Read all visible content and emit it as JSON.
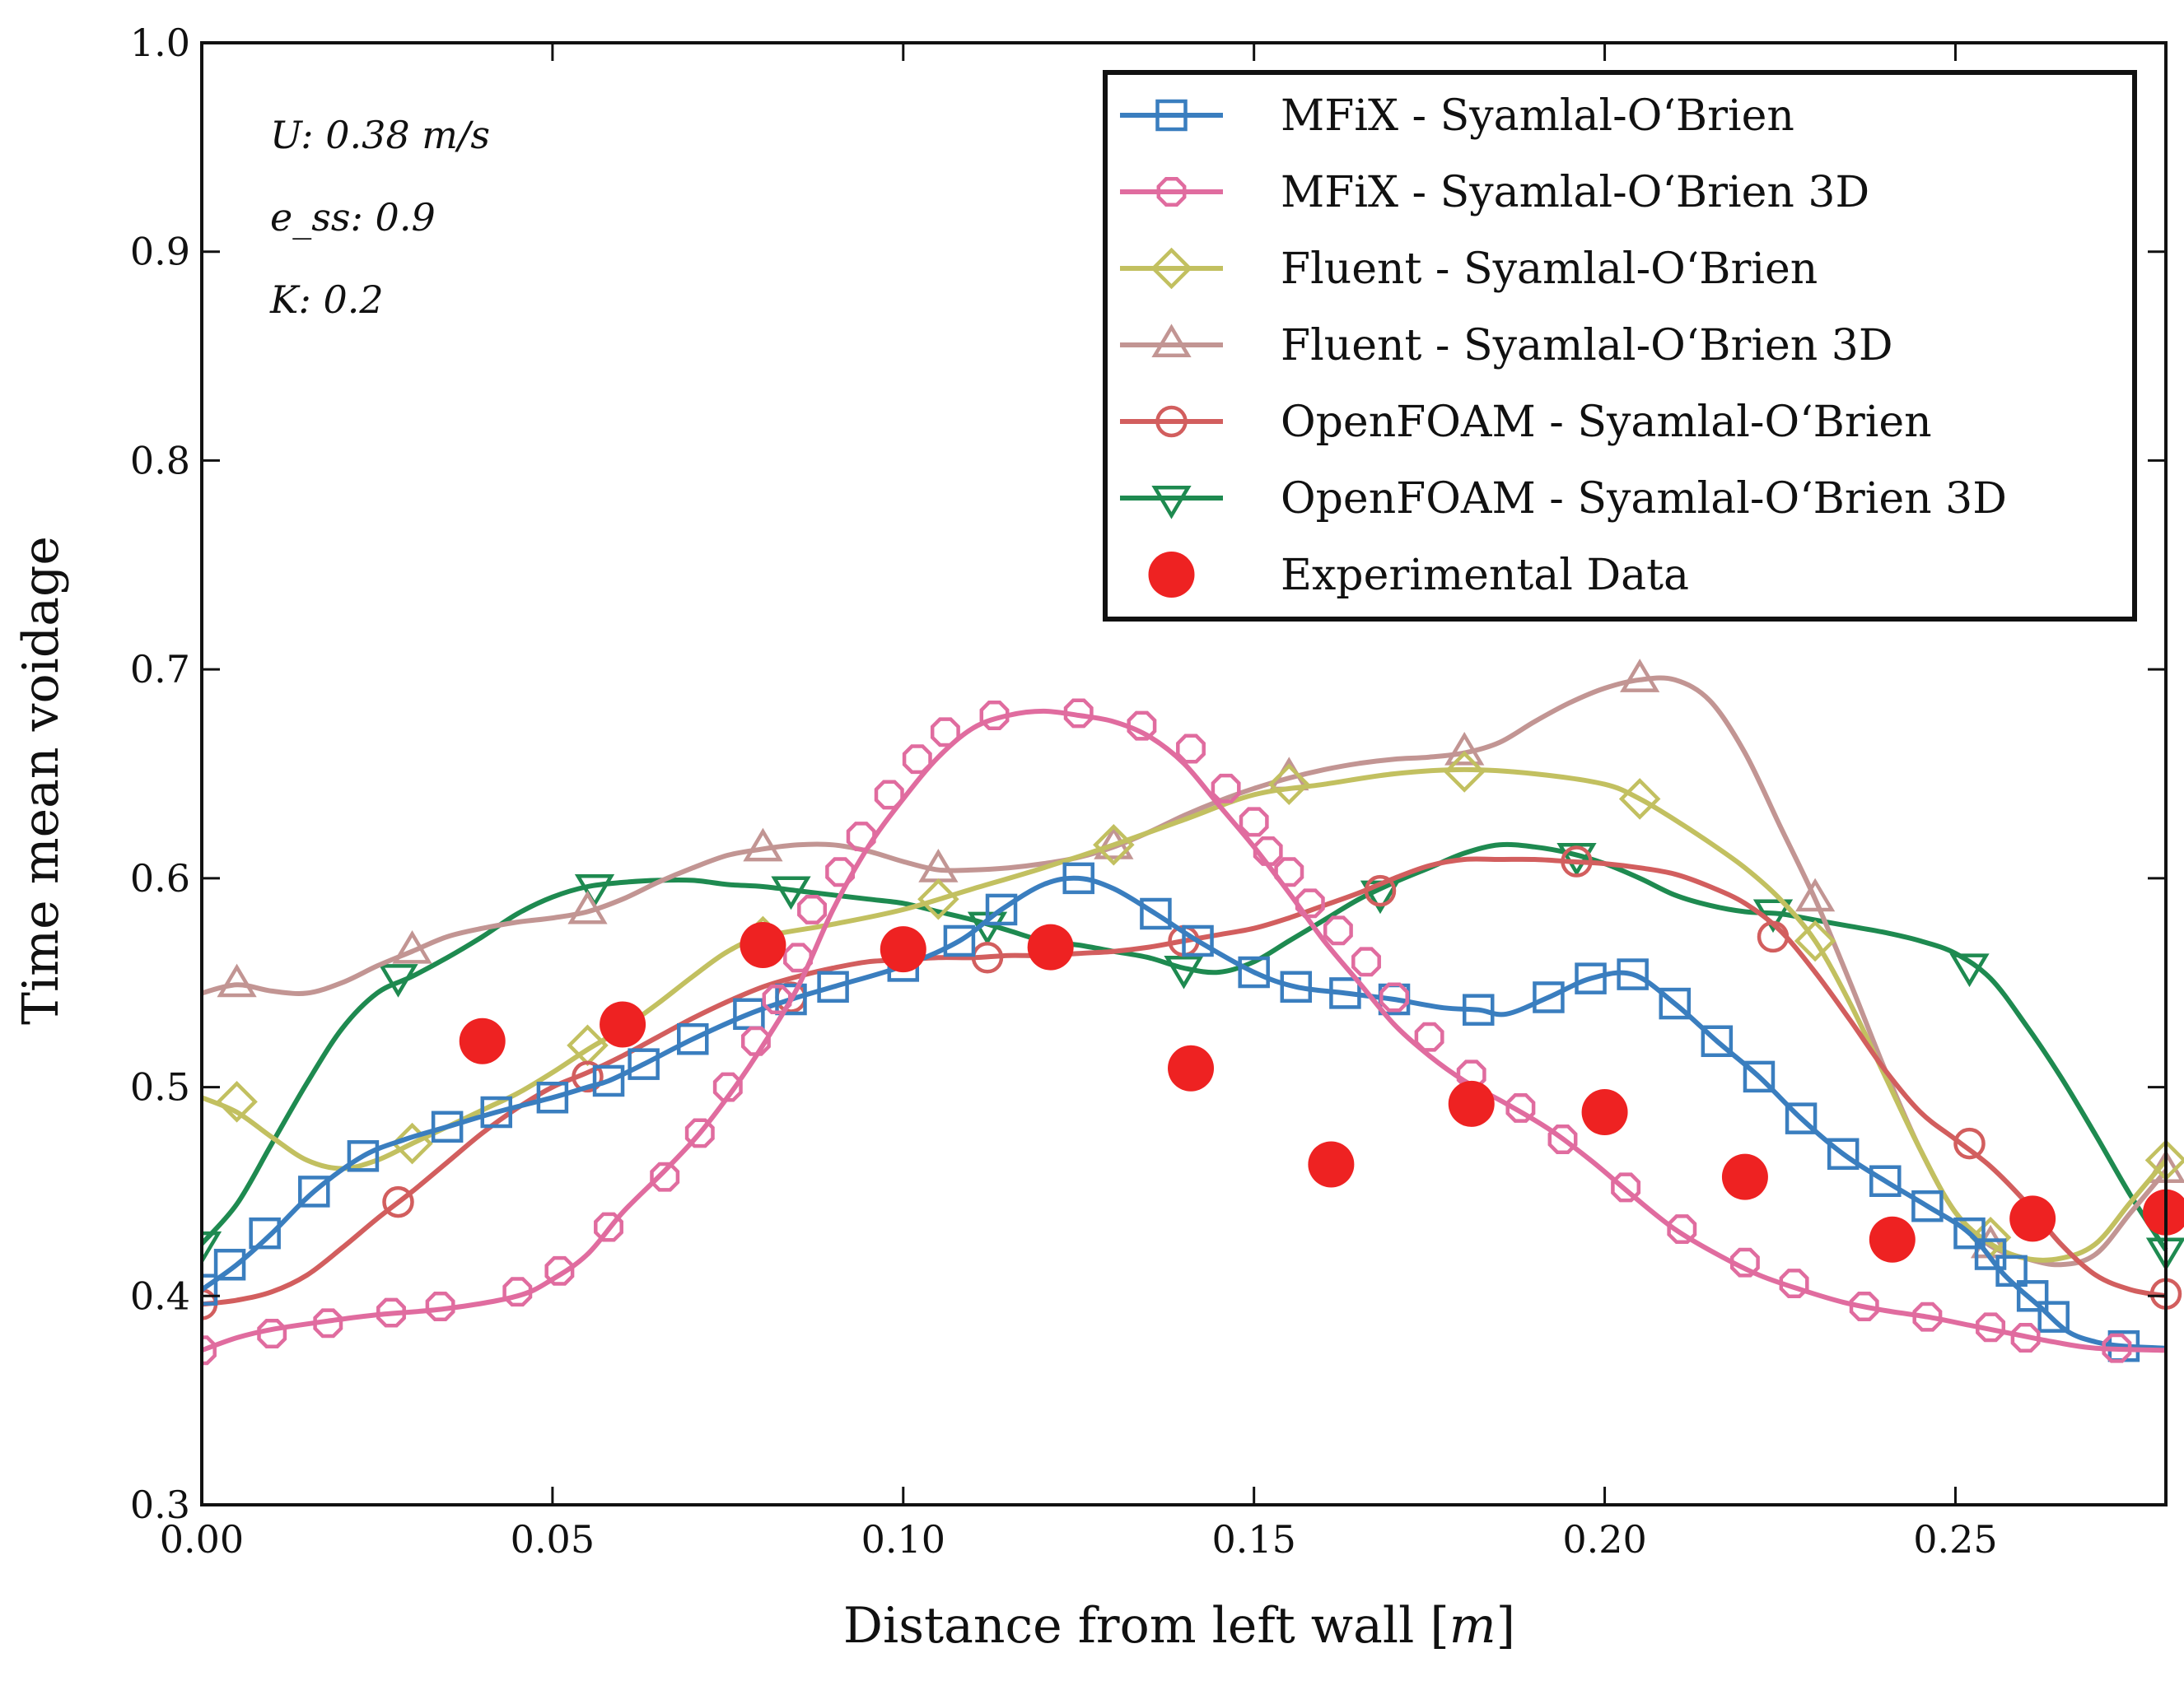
{
  "chart_data": {
    "type": "line",
    "title": "",
    "xlabel": "Distance from left wall [m]",
    "ylabel": "Time mean voidage",
    "xlim": [
      0.0,
      0.28
    ],
    "ylim": [
      0.3,
      1.0
    ],
    "xticks": [
      "0.00",
      "0.05",
      "0.10",
      "0.15",
      "0.20",
      "0.25"
    ],
    "xtick_values": [
      0.0,
      0.05,
      0.1,
      0.15,
      0.2,
      0.25
    ],
    "yticks": [
      "0.3",
      "0.4",
      "0.5",
      "0.6",
      "0.7",
      "0.8",
      "0.9",
      "1.0"
    ],
    "ytick_values": [
      0.3,
      0.4,
      0.5,
      0.6,
      0.7,
      0.8,
      0.9,
      1.0
    ],
    "grid": false,
    "legend_position": "top-right",
    "annotations": [
      "U: 0.38 m/s",
      "e_ss: 0.9",
      "K: 0.2"
    ],
    "series": [
      {
        "name": "MFiX - Syamlal-O‘Brien",
        "color": "#3a7ebf",
        "marker": "square",
        "x": [
          0.0,
          0.005,
          0.01,
          0.016,
          0.023,
          0.029,
          0.035,
          0.042,
          0.05,
          0.055,
          0.058,
          0.063,
          0.07,
          0.078,
          0.084,
          0.09,
          0.1,
          0.108,
          0.114,
          0.12,
          0.125,
          0.13,
          0.136,
          0.142,
          0.15,
          0.156,
          0.163,
          0.17,
          0.177,
          0.182,
          0.186,
          0.192,
          0.198,
          0.204,
          0.21,
          0.216,
          0.222,
          0.228,
          0.234,
          0.24,
          0.246,
          0.252,
          0.257,
          0.262,
          0.266,
          0.27,
          0.274,
          0.28
        ],
        "y": [
          0.403,
          0.415,
          0.43,
          0.45,
          0.467,
          0.475,
          0.481,
          0.488,
          0.495,
          0.5,
          0.503,
          0.511,
          0.523,
          0.535,
          0.542,
          0.548,
          0.558,
          0.57,
          0.585,
          0.597,
          0.6,
          0.595,
          0.583,
          0.57,
          0.555,
          0.548,
          0.545,
          0.542,
          0.538,
          0.537,
          0.535,
          0.543,
          0.552,
          0.554,
          0.54,
          0.522,
          0.505,
          0.485,
          0.468,
          0.455,
          0.443,
          0.43,
          0.41,
          0.395,
          0.383,
          0.378,
          0.376,
          0.375
        ],
        "marker_x": [
          0.0,
          0.004,
          0.009,
          0.016,
          0.023,
          0.035,
          0.042,
          0.05,
          0.058,
          0.063,
          0.07,
          0.078,
          0.084,
          0.09,
          0.1,
          0.108,
          0.114,
          0.125,
          0.136,
          0.142,
          0.15,
          0.156,
          0.163,
          0.17,
          0.182,
          0.192,
          0.198,
          0.204,
          0.21,
          0.216,
          0.222,
          0.228,
          0.234,
          0.24,
          0.246,
          0.252,
          0.255,
          0.258,
          0.261,
          0.264,
          0.274
        ],
        "marker_y": [
          0.403,
          0.415,
          0.43,
          0.45,
          0.467,
          0.481,
          0.488,
          0.495,
          0.503,
          0.511,
          0.523,
          0.535,
          0.542,
          0.548,
          0.558,
          0.57,
          0.585,
          0.6,
          0.583,
          0.57,
          0.555,
          0.548,
          0.545,
          0.542,
          0.537,
          0.543,
          0.552,
          0.554,
          0.54,
          0.522,
          0.505,
          0.485,
          0.468,
          0.455,
          0.443,
          0.43,
          0.42,
          0.412,
          0.4,
          0.39,
          0.376
        ]
      },
      {
        "name": "MFiX - Syamlal-O‘Brien 3D",
        "color": "#e06c9f",
        "marker": "octagon",
        "x": [
          0.0,
          0.005,
          0.01,
          0.018,
          0.025,
          0.035,
          0.045,
          0.05,
          0.055,
          0.06,
          0.066,
          0.071,
          0.076,
          0.08,
          0.085,
          0.09,
          0.095,
          0.1,
          0.105,
          0.11,
          0.115,
          0.12,
          0.125,
          0.13,
          0.135,
          0.14,
          0.145,
          0.15,
          0.155,
          0.16,
          0.165,
          0.17,
          0.175,
          0.18,
          0.186,
          0.192,
          0.198,
          0.204,
          0.21,
          0.216,
          0.222,
          0.228,
          0.234,
          0.24,
          0.246,
          0.252,
          0.258,
          0.264,
          0.27,
          0.28
        ],
        "y": [
          0.374,
          0.38,
          0.384,
          0.388,
          0.391,
          0.394,
          0.4,
          0.408,
          0.42,
          0.44,
          0.46,
          0.478,
          0.5,
          0.52,
          0.548,
          0.585,
          0.615,
          0.638,
          0.658,
          0.672,
          0.678,
          0.68,
          0.678,
          0.675,
          0.668,
          0.655,
          0.635,
          0.615,
          0.593,
          0.57,
          0.55,
          0.53,
          0.515,
          0.503,
          0.492,
          0.48,
          0.465,
          0.448,
          0.432,
          0.42,
          0.41,
          0.403,
          0.397,
          0.393,
          0.39,
          0.386,
          0.382,
          0.378,
          0.375,
          0.374
        ],
        "marker_x": [
          0.0,
          0.01,
          0.018,
          0.027,
          0.034,
          0.045,
          0.051,
          0.058,
          0.066,
          0.071,
          0.075,
          0.079,
          0.082,
          0.085,
          0.087,
          0.091,
          0.094,
          0.098,
          0.102,
          0.106,
          0.113,
          0.125,
          0.134,
          0.141,
          0.146,
          0.15,
          0.152,
          0.155,
          0.158,
          0.162,
          0.166,
          0.17,
          0.175,
          0.181,
          0.188,
          0.194,
          0.203,
          0.211,
          0.22,
          0.227,
          0.237,
          0.246,
          0.255,
          0.26,
          0.273
        ],
        "marker_y": [
          0.374,
          0.382,
          0.387,
          0.392,
          0.395,
          0.402,
          0.412,
          0.433,
          0.457,
          0.478,
          0.5,
          0.522,
          0.542,
          0.562,
          0.585,
          0.603,
          0.62,
          0.64,
          0.657,
          0.67,
          0.678,
          0.679,
          0.673,
          0.662,
          0.643,
          0.627,
          0.613,
          0.603,
          0.588,
          0.575,
          0.56,
          0.543,
          0.524,
          0.506,
          0.49,
          0.475,
          0.452,
          0.432,
          0.416,
          0.406,
          0.395,
          0.39,
          0.385,
          0.38,
          0.375
        ]
      },
      {
        "name": "Fluent - Syamlal-O‘Brien",
        "color": "#c2c060",
        "marker": "diamond",
        "x": [
          0.0,
          0.005,
          0.01,
          0.015,
          0.02,
          0.025,
          0.03,
          0.035,
          0.04,
          0.045,
          0.05,
          0.055,
          0.06,
          0.065,
          0.07,
          0.075,
          0.08,
          0.09,
          0.1,
          0.11,
          0.12,
          0.13,
          0.14,
          0.15,
          0.16,
          0.17,
          0.18,
          0.19,
          0.2,
          0.205,
          0.21,
          0.215,
          0.22,
          0.225,
          0.23,
          0.235,
          0.24,
          0.245,
          0.25,
          0.255,
          0.26,
          0.265,
          0.27,
          0.275,
          0.28
        ],
        "y": [
          0.495,
          0.488,
          0.476,
          0.465,
          0.461,
          0.465,
          0.473,
          0.481,
          0.489,
          0.497,
          0.507,
          0.518,
          0.528,
          0.54,
          0.553,
          0.565,
          0.572,
          0.578,
          0.585,
          0.595,
          0.605,
          0.616,
          0.628,
          0.64,
          0.645,
          0.65,
          0.652,
          0.65,
          0.645,
          0.638,
          0.628,
          0.617,
          0.605,
          0.59,
          0.57,
          0.54,
          0.505,
          0.47,
          0.44,
          0.425,
          0.418,
          0.418,
          0.425,
          0.445,
          0.465
        ],
        "marker_x": [
          0.005,
          0.03,
          0.055,
          0.08,
          0.105,
          0.13,
          0.155,
          0.18,
          0.205,
          0.23,
          0.255,
          0.28
        ],
        "marker_y": [
          0.493,
          0.473,
          0.52,
          0.572,
          0.59,
          0.616,
          0.645,
          0.651,
          0.638,
          0.57,
          0.428,
          0.465
        ]
      },
      {
        "name": "Fluent - Syamlal-O‘Brien 3D",
        "color": "#c29593",
        "marker": "triangle-up",
        "x": [
          0.0,
          0.005,
          0.01,
          0.015,
          0.02,
          0.025,
          0.03,
          0.035,
          0.04,
          0.045,
          0.05,
          0.055,
          0.06,
          0.065,
          0.07,
          0.075,
          0.08,
          0.085,
          0.09,
          0.095,
          0.1,
          0.105,
          0.11,
          0.115,
          0.12,
          0.125,
          0.13,
          0.135,
          0.14,
          0.145,
          0.15,
          0.155,
          0.16,
          0.165,
          0.17,
          0.175,
          0.18,
          0.185,
          0.19,
          0.195,
          0.2,
          0.205,
          0.21,
          0.215,
          0.22,
          0.225,
          0.23,
          0.235,
          0.24,
          0.245,
          0.25,
          0.255,
          0.26,
          0.265,
          0.27,
          0.275,
          0.28
        ],
        "y": [
          0.545,
          0.549,
          0.546,
          0.545,
          0.55,
          0.558,
          0.565,
          0.572,
          0.576,
          0.579,
          0.581,
          0.584,
          0.59,
          0.598,
          0.605,
          0.611,
          0.614,
          0.616,
          0.616,
          0.613,
          0.608,
          0.604,
          0.604,
          0.605,
          0.607,
          0.61,
          0.615,
          0.622,
          0.63,
          0.637,
          0.643,
          0.648,
          0.652,
          0.655,
          0.657,
          0.658,
          0.66,
          0.665,
          0.675,
          0.684,
          0.691,
          0.695,
          0.695,
          0.685,
          0.66,
          0.625,
          0.59,
          0.55,
          0.508,
          0.47,
          0.44,
          0.424,
          0.418,
          0.415,
          0.42,
          0.44,
          0.46
        ],
        "marker_x": [
          0.005,
          0.03,
          0.055,
          0.08,
          0.105,
          0.13,
          0.155,
          0.18,
          0.205,
          0.23,
          0.255,
          0.28
        ],
        "marker_y": [
          0.549,
          0.565,
          0.584,
          0.614,
          0.604,
          0.615,
          0.648,
          0.66,
          0.695,
          0.59,
          0.424,
          0.46
        ]
      },
      {
        "name": "OpenFOAM - Syamlal-O‘Brien",
        "color": "#d25e5e",
        "marker": "circle",
        "x": [
          0.0,
          0.005,
          0.01,
          0.015,
          0.02,
          0.025,
          0.03,
          0.035,
          0.04,
          0.045,
          0.05,
          0.055,
          0.06,
          0.065,
          0.07,
          0.075,
          0.08,
          0.085,
          0.09,
          0.095,
          0.1,
          0.105,
          0.11,
          0.115,
          0.12,
          0.125,
          0.13,
          0.135,
          0.14,
          0.145,
          0.15,
          0.155,
          0.16,
          0.165,
          0.17,
          0.175,
          0.18,
          0.185,
          0.19,
          0.195,
          0.2,
          0.205,
          0.21,
          0.215,
          0.22,
          0.225,
          0.23,
          0.235,
          0.24,
          0.245,
          0.25,
          0.255,
          0.26,
          0.265,
          0.27,
          0.275,
          0.28
        ],
        "y": [
          0.396,
          0.398,
          0.402,
          0.41,
          0.423,
          0.437,
          0.45,
          0.464,
          0.478,
          0.49,
          0.5,
          0.507,
          0.515,
          0.524,
          0.533,
          0.541,
          0.548,
          0.553,
          0.557,
          0.56,
          0.561,
          0.562,
          0.562,
          0.563,
          0.563,
          0.564,
          0.565,
          0.567,
          0.57,
          0.573,
          0.576,
          0.581,
          0.587,
          0.593,
          0.6,
          0.606,
          0.609,
          0.609,
          0.609,
          0.608,
          0.607,
          0.605,
          0.602,
          0.596,
          0.588,
          0.575,
          0.555,
          0.532,
          0.508,
          0.488,
          0.475,
          0.462,
          0.445,
          0.425,
          0.41,
          0.403,
          0.4
        ],
        "marker_x": [
          0.0,
          0.028,
          0.055,
          0.084,
          0.112,
          0.14,
          0.168,
          0.196,
          0.224,
          0.252,
          0.28
        ],
        "marker_y": [
          0.396,
          0.445,
          0.505,
          0.543,
          0.562,
          0.57,
          0.594,
          0.608,
          0.572,
          0.473,
          0.401
        ]
      },
      {
        "name": "OpenFOAM - Syamlal-O‘Brien 3D",
        "color": "#1e8a50",
        "marker": "triangle-down",
        "x": [
          0.0,
          0.005,
          0.01,
          0.015,
          0.02,
          0.025,
          0.03,
          0.035,
          0.04,
          0.045,
          0.05,
          0.055,
          0.06,
          0.065,
          0.07,
          0.075,
          0.08,
          0.085,
          0.09,
          0.095,
          0.1,
          0.105,
          0.11,
          0.115,
          0.12,
          0.125,
          0.13,
          0.135,
          0.14,
          0.145,
          0.15,
          0.155,
          0.16,
          0.165,
          0.17,
          0.175,
          0.18,
          0.185,
          0.19,
          0.195,
          0.2,
          0.205,
          0.21,
          0.215,
          0.22,
          0.225,
          0.23,
          0.235,
          0.24,
          0.245,
          0.25,
          0.255,
          0.26,
          0.265,
          0.27,
          0.275,
          0.28
        ],
        "y": [
          0.425,
          0.444,
          0.473,
          0.502,
          0.528,
          0.545,
          0.553,
          0.562,
          0.572,
          0.583,
          0.591,
          0.596,
          0.598,
          0.599,
          0.599,
          0.597,
          0.596,
          0.594,
          0.592,
          0.59,
          0.588,
          0.584,
          0.58,
          0.575,
          0.57,
          0.568,
          0.565,
          0.562,
          0.557,
          0.555,
          0.56,
          0.57,
          0.58,
          0.59,
          0.598,
          0.605,
          0.612,
          0.616,
          0.615,
          0.612,
          0.607,
          0.6,
          0.592,
          0.587,
          0.584,
          0.583,
          0.58,
          0.577,
          0.574,
          0.57,
          0.564,
          0.552,
          0.53,
          0.505,
          0.477,
          0.448,
          0.422
        ],
        "marker_x": [
          0.0,
          0.028,
          0.056,
          0.084,
          0.112,
          0.14,
          0.168,
          0.196,
          0.224,
          0.252,
          0.28
        ],
        "marker_y": [
          0.425,
          0.553,
          0.596,
          0.595,
          0.578,
          0.557,
          0.593,
          0.611,
          0.584,
          0.558,
          0.422
        ]
      }
    ],
    "experimental": {
      "name": "Experimental Data",
      "color": "#ee2222",
      "x": [
        0.04,
        0.06,
        0.08,
        0.1,
        0.121,
        0.141,
        0.161,
        0.181,
        0.2,
        0.22,
        0.241,
        0.261,
        0.28
      ],
      "y": [
        0.522,
        0.53,
        0.568,
        0.566,
        0.567,
        0.509,
        0.463,
        0.492,
        0.488,
        0.457,
        0.427,
        0.437,
        0.44
      ]
    }
  }
}
